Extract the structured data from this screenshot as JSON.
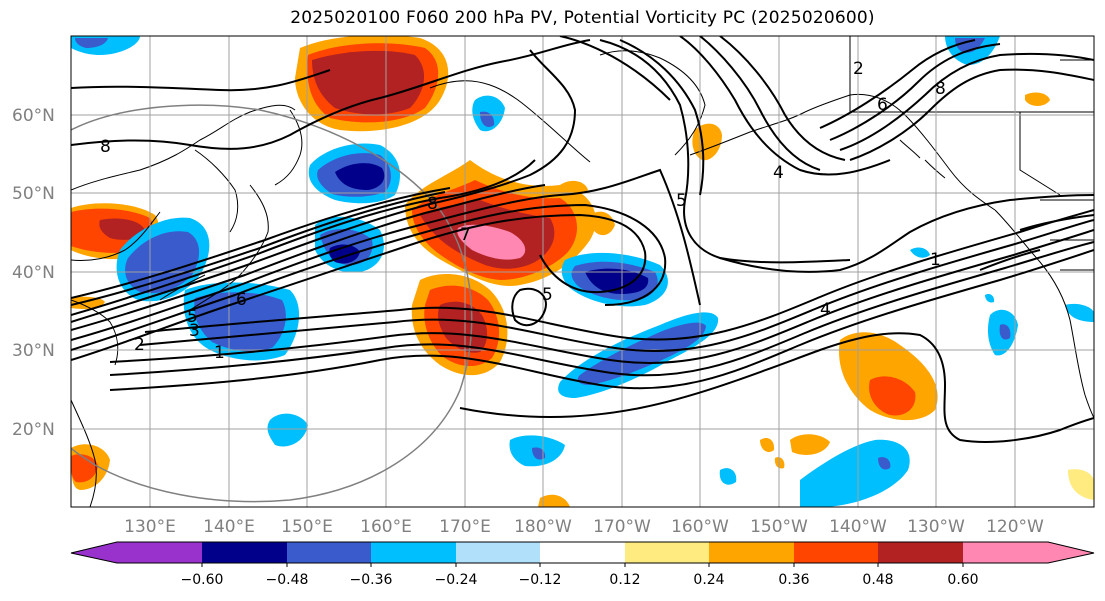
{
  "title": "2025020100 F060 200 hPa PV, Potential Vorticity PC (2025020600)",
  "map": {
    "lat_labels": [
      "60°N",
      "50°N",
      "40°N",
      "30°N",
      "20°N"
    ],
    "lon_labels": [
      "130°E",
      "140°E",
      "150°E",
      "160°E",
      "170°E",
      "180°W",
      "170°W",
      "160°W",
      "150°W",
      "140°W",
      "130°W",
      "120°W"
    ],
    "contour_labels": [
      "1",
      "2",
      "3",
      "4",
      "5",
      "6",
      "7",
      "8"
    ],
    "label_color": "#808080"
  },
  "colorbar": {
    "ticks": [
      "−0.60",
      "−0.48",
      "−0.36",
      "−0.24",
      "−0.12",
      "0.12",
      "0.24",
      "0.36",
      "0.48",
      "0.60"
    ],
    "colors": {
      "under": "#9932cc",
      "c1": "#00008b",
      "c2": "#3a5bcc",
      "c3": "#00bfff",
      "c4": "#b0e0fa",
      "c5": "#ffffff",
      "c6": "#ffeb80",
      "c7": "#ffa500",
      "c8": "#ff4500",
      "c9": "#b22222",
      "over": "#ff87b1"
    }
  }
}
